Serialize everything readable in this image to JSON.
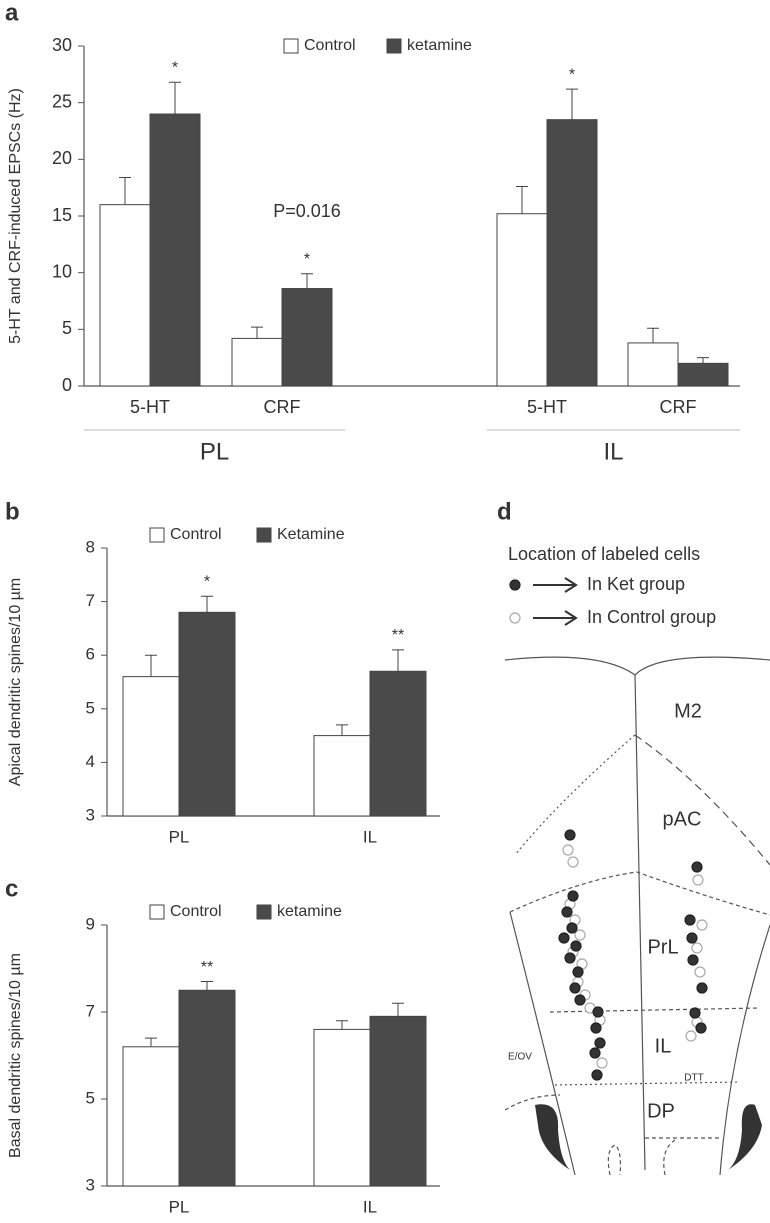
{
  "chart_data": [
    {
      "type": "bar",
      "panel_label": "a",
      "ylabel": "5-HT and CRF-induced EPSCs (Hz)",
      "categories": [
        "5-HT",
        "CRF",
        "5-HT",
        "CRF"
      ],
      "groups": [
        "PL",
        "IL"
      ],
      "series": [
        {
          "name": "Control",
          "color": "#ffffff",
          "values": [
            16,
            4.2,
            15.2,
            3.8
          ],
          "errors": [
            2.4,
            1.0,
            2.4,
            1.3
          ],
          "markers": [
            null,
            null,
            null,
            null
          ]
        },
        {
          "name": "ketamine",
          "color": "#4a4a4a",
          "values": [
            24,
            8.6,
            23.5,
            2.0
          ],
          "errors": [
            2.8,
            1.3,
            2.7,
            0.5
          ],
          "markers": [
            "*",
            "*",
            "*",
            null
          ]
        }
      ],
      "annotation": "P=0.016",
      "ylim": [
        0,
        30
      ],
      "yticks": [
        0,
        5,
        10,
        15,
        20,
        25,
        30
      ]
    },
    {
      "type": "bar",
      "panel_label": "b",
      "ylabel": "Apical dendritic spines/10 µm",
      "categories": [
        "PL",
        "IL"
      ],
      "series": [
        {
          "name": "Control",
          "color": "#ffffff",
          "values": [
            5.6,
            4.5
          ],
          "errors": [
            0.4,
            0.2
          ],
          "markers": [
            null,
            null
          ]
        },
        {
          "name": "Ketamine",
          "color": "#4a4a4a",
          "values": [
            6.8,
            5.7
          ],
          "errors": [
            0.3,
            0.4
          ],
          "markers": [
            "*",
            "**"
          ]
        }
      ],
      "ylim": [
        3,
        8
      ],
      "yticks": [
        3,
        4,
        5,
        6,
        7,
        8
      ]
    },
    {
      "type": "bar",
      "panel_label": "c",
      "ylabel": "Basal dendritic spines/10 µm",
      "categories": [
        "PL",
        "IL"
      ],
      "series": [
        {
          "name": "Control",
          "color": "#ffffff",
          "values": [
            6.2,
            6.6
          ],
          "errors": [
            0.2,
            0.2
          ],
          "markers": [
            null,
            null
          ]
        },
        {
          "name": "ketamine",
          "color": "#4a4a4a",
          "values": [
            7.5,
            6.9
          ],
          "errors": [
            0.2,
            0.3
          ],
          "markers": [
            "**",
            null
          ]
        }
      ],
      "ylim": [
        3,
        9
      ],
      "yticks": [
        3,
        5,
        7,
        9
      ]
    }
  ],
  "diagram": {
    "panel_label": "d",
    "legend_title": "Location of labeled cells",
    "legend": [
      "In Ket group",
      "In Control group"
    ],
    "regions": [
      "M2",
      "pAC",
      "PrL",
      "IL",
      "DP",
      "E/OV",
      "DTT"
    ]
  }
}
